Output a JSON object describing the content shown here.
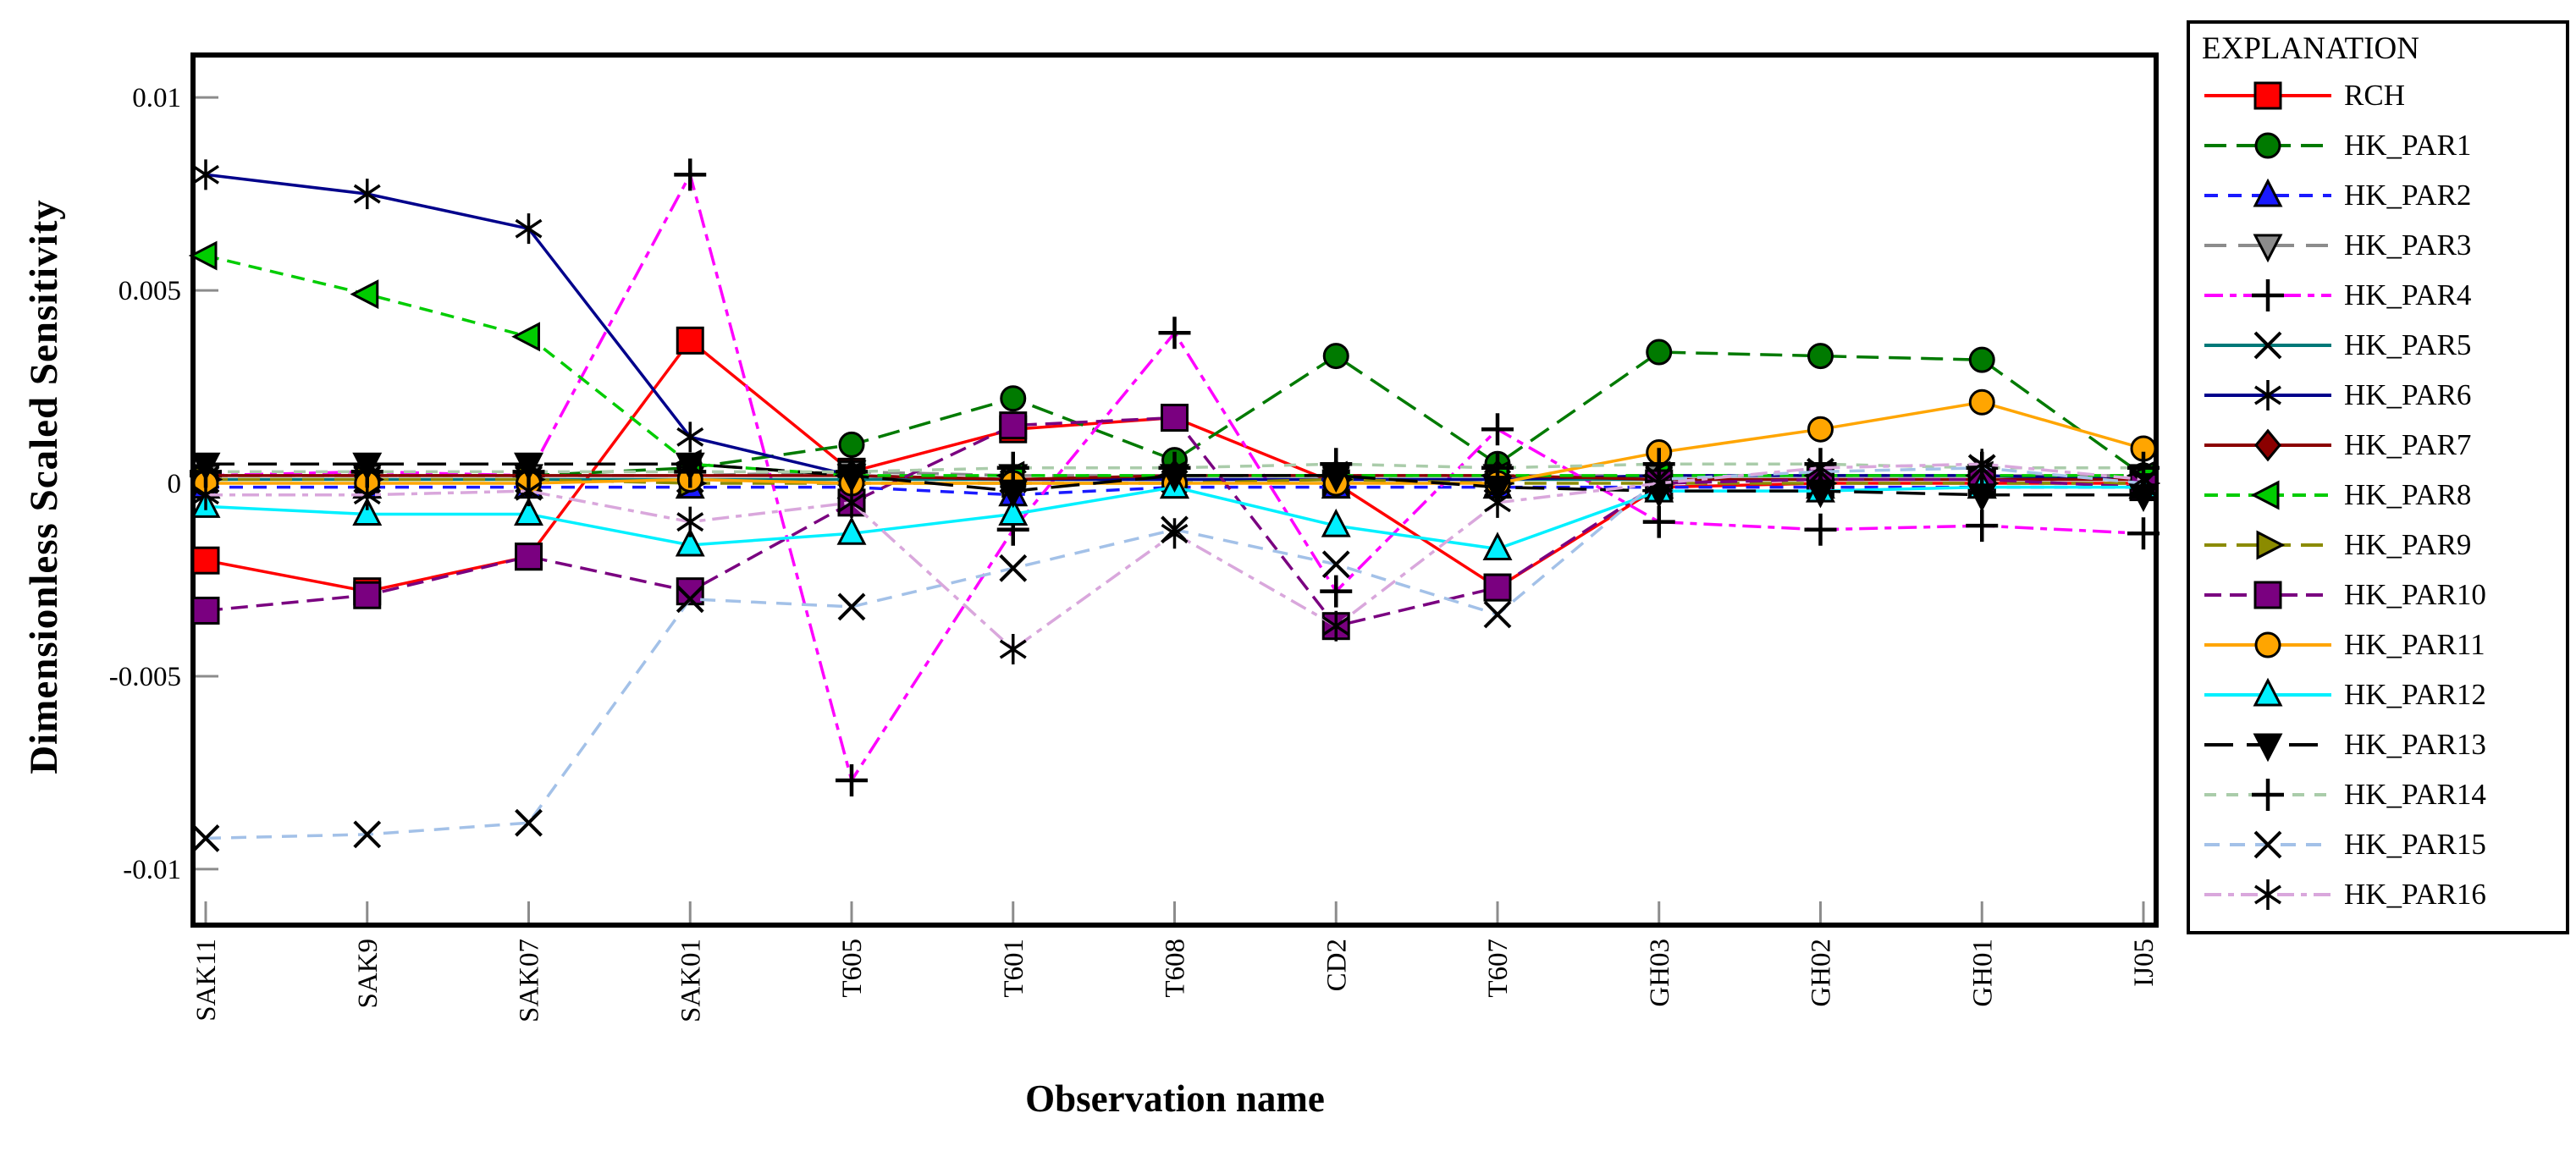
{
  "legend": {
    "title": "EXPLANATION"
  },
  "chart_data": {
    "type": "line",
    "title": "",
    "ylabel": "Dimensionless Scaled Sensitivity",
    "xlabel": "Observation name",
    "ylim": [
      -0.01145,
      0.0111
    ],
    "grid": "off",
    "legend_position": "right",
    "y_ticks": [
      {
        "value": 0.01,
        "label": "0.01"
      },
      {
        "value": 0.005,
        "label": "0.005"
      },
      {
        "value": 0,
        "label": "0"
      },
      {
        "value": -0.005,
        "label": "-0.005"
      },
      {
        "value": -0.01,
        "label": "-0.01"
      }
    ],
    "categories": [
      "SAK11",
      "SAK9",
      "SAK07",
      "SAK01",
      "T605",
      "T601",
      "T608",
      "CD2",
      "T607",
      "GH03",
      "GH02",
      "GH01",
      "IJ05"
    ],
    "series": [
      {
        "name": "RCH",
        "color": "#FF0000",
        "dash": "",
        "marker": "square",
        "marker_fill": "#FF0000",
        "values": [
          -0.002,
          -0.0028,
          -0.0019,
          0.0037,
          0.0003,
          0.0014,
          0.0017,
          0.0,
          -0.0027,
          -0.0001,
          0.0,
          0.0,
          0.0
        ]
      },
      {
        "name": "HK_PAR1",
        "color": "#007A00",
        "dash": "26,12",
        "marker": "circle",
        "marker_fill": "#007A00",
        "values": [
          0.0002,
          0.0002,
          0.0002,
          0.0004,
          0.001,
          0.0022,
          0.0006,
          0.0033,
          0.0005,
          0.0034,
          0.0033,
          0.0032,
          0.0002
        ]
      },
      {
        "name": "HK_PAR2",
        "color": "#1A1AFF",
        "dash": "16,12",
        "marker": "triangle-up",
        "marker_fill": "#1A1AFF",
        "values": [
          -0.0001,
          -0.0001,
          -0.0001,
          -0.0001,
          -0.0001,
          -0.0003,
          -0.0001,
          -0.0001,
          -0.0001,
          -0.0001,
          -0.0001,
          -0.0001,
          -0.0001
        ]
      },
      {
        "name": "HK_PAR3",
        "color": "#8C8C8C",
        "dash": "26,14",
        "marker": "triangle-down",
        "marker_fill": "#8C8C8C",
        "values": [
          0.0002,
          0.0002,
          0.0002,
          0.0002,
          0.0003,
          0.0002,
          0.0002,
          0.0002,
          0.0002,
          0.0002,
          0.0002,
          0.0002,
          0.0002
        ]
      },
      {
        "name": "HK_PAR4",
        "color": "#FF00FF",
        "dash": "22,8,8,8",
        "marker": "plus",
        "marker_fill": "#000000",
        "values": [
          0.0002,
          0.0003,
          0.0002,
          0.008,
          -0.0077,
          -0.0012,
          0.0039,
          -0.0028,
          0.0014,
          -0.001,
          -0.0012,
          -0.0011,
          -0.0013
        ]
      },
      {
        "name": "HK_PAR5",
        "color": "#007878",
        "dash": "",
        "marker": "x",
        "marker_fill": "#000000",
        "values": [
          0.0001,
          0.0001,
          0.0001,
          0.0001,
          0.0001,
          0.0001,
          0.0001,
          0.0001,
          0.0001,
          0.0001,
          0.0001,
          0.0001,
          0.0001
        ]
      },
      {
        "name": "HK_PAR6",
        "color": "#00008B",
        "dash": "",
        "marker": "asterisk",
        "marker_fill": "#000000",
        "values": [
          0.008,
          0.0075,
          0.0066,
          0.0012,
          0.0002,
          0.0001,
          0.0001,
          0.0001,
          0.0001,
          0.0002,
          0.0002,
          0.0002,
          0.0001
        ]
      },
      {
        "name": "HK_PAR7",
        "color": "#8B0000",
        "dash": "",
        "marker": "diamond",
        "marker_fill": "#8B0000",
        "values": [
          0.0002,
          0.0002,
          0.0002,
          0.0002,
          0.0002,
          0.0001,
          0.0002,
          0.0002,
          0.0002,
          0.0001,
          0.0001,
          0.0001,
          0.0001
        ]
      },
      {
        "name": "HK_PAR8",
        "color": "#00CC00",
        "dash": "16,10",
        "marker": "triangle-left",
        "marker_fill": "#00CC00",
        "values": [
          0.0059,
          0.0049,
          0.0038,
          0.0005,
          0.0002,
          0.0002,
          0.0002,
          0.0002,
          0.0002,
          0.0002,
          0.0002,
          0.0002,
          0.0002
        ]
      },
      {
        "name": "HK_PAR9",
        "color": "#8B8B00",
        "dash": "26,12",
        "marker": "triangle-right",
        "marker_fill": "#8B8B00",
        "values": [
          0.0001,
          0.0001,
          0.0001,
          0.0,
          0.0,
          0.0,
          0.0,
          0.0001,
          0.0,
          0.0,
          0.0,
          0.0,
          0.0
        ]
      },
      {
        "name": "HK_PAR10",
        "color": "#7A0080",
        "dash": "20,10",
        "marker": "square",
        "marker_fill": "#7A0080",
        "values": [
          -0.0033,
          -0.0029,
          -0.0019,
          -0.0028,
          -0.0005,
          0.0015,
          0.0017,
          -0.0037,
          -0.0027,
          0.0,
          0.0001,
          0.0001,
          -0.0001
        ]
      },
      {
        "name": "HK_PAR11",
        "color": "#FFA500",
        "dash": "",
        "marker": "circle",
        "marker_fill": "#FFA500",
        "values": [
          0.0,
          0.0,
          0.0,
          0.0001,
          0.0,
          0.0,
          0.0,
          0.0,
          0.0,
          0.0008,
          0.0014,
          0.0021,
          0.0009
        ]
      },
      {
        "name": "HK_PAR12",
        "color": "#00F0FF",
        "dash": "",
        "marker": "triangle-up",
        "marker_fill": "#00F0FF",
        "values": [
          -0.0006,
          -0.0008,
          -0.0008,
          -0.0016,
          -0.0013,
          -0.0008,
          -0.0001,
          -0.0011,
          -0.0017,
          -0.0002,
          -0.0002,
          -0.0001,
          -0.0001
        ]
      },
      {
        "name": "HK_PAR13",
        "color": "#000000",
        "dash": "34,16",
        "marker": "triangle-down",
        "marker_fill": "#000000",
        "values": [
          0.0005,
          0.0005,
          0.0005,
          0.0005,
          0.0002,
          -0.0002,
          0.0002,
          0.0002,
          -0.0001,
          -0.0002,
          -0.0002,
          -0.0003,
          -0.0003
        ]
      },
      {
        "name": "HK_PAR14",
        "color": "#AACCAA",
        "dash": "14,12",
        "marker": "plus",
        "marker_fill": "#000000",
        "values": [
          0.0003,
          0.0003,
          0.0003,
          0.0003,
          0.0003,
          0.0004,
          0.0004,
          0.0005,
          0.0004,
          0.0005,
          0.0005,
          0.0004,
          0.0004
        ]
      },
      {
        "name": "HK_PAR15",
        "color": "#A3C1E8",
        "dash": "18,12",
        "marker": "x",
        "marker_fill": "#000000",
        "values": [
          -0.0092,
          -0.0091,
          -0.0088,
          -0.003,
          -0.0032,
          -0.0022,
          -0.0012,
          -0.0021,
          -0.0034,
          0.0001,
          0.0003,
          0.0004,
          0.0
        ]
      },
      {
        "name": "HK_PAR16",
        "color": "#D9A7DC",
        "dash": "20,8,7,8",
        "marker": "asterisk",
        "marker_fill": "#000000",
        "values": [
          -0.0003,
          -0.0003,
          -0.0002,
          -0.001,
          -0.0005,
          -0.0043,
          -0.0013,
          -0.0037,
          -0.0005,
          0.0,
          0.0004,
          0.0005,
          0.0001
        ]
      }
    ]
  },
  "colors": {
    "axis": "#000000",
    "tick": "#8C8C8C",
    "background": "#FFFFFF"
  }
}
